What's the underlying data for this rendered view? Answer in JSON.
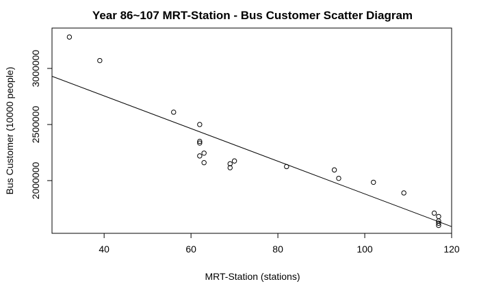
{
  "chart_data": {
    "type": "scatter",
    "title": "Year 86~107 MRT-Station  -  Bus Customer Scatter Diagram",
    "xlabel": "MRT-Station (stations)",
    "ylabel": "Bus Customer (10000 people)",
    "xlim": [
      28,
      120
    ],
    "ylim": [
      1530000,
      3360000
    ],
    "xticks": [
      40,
      60,
      80,
      100,
      120
    ],
    "yticks": [
      2000000,
      2500000,
      3000000
    ],
    "xtick_labels": [
      "40",
      "60",
      "80",
      "100",
      "120"
    ],
    "ytick_labels": [
      "2000000",
      "2500000",
      "3000000"
    ],
    "points": [
      {
        "x": 32,
        "y": 3280000
      },
      {
        "x": 39,
        "y": 3070000
      },
      {
        "x": 56,
        "y": 2610000
      },
      {
        "x": 62,
        "y": 2500000
      },
      {
        "x": 62,
        "y": 2350000
      },
      {
        "x": 62,
        "y": 2335000
      },
      {
        "x": 62,
        "y": 2220000
      },
      {
        "x": 63,
        "y": 2245000
      },
      {
        "x": 63,
        "y": 2160000
      },
      {
        "x": 69,
        "y": 2150000
      },
      {
        "x": 69,
        "y": 2115000
      },
      {
        "x": 70,
        "y": 2175000
      },
      {
        "x": 82,
        "y": 2125000
      },
      {
        "x": 93,
        "y": 2095000
      },
      {
        "x": 94,
        "y": 2020000
      },
      {
        "x": 102,
        "y": 1985000
      },
      {
        "x": 109,
        "y": 1890000
      },
      {
        "x": 116,
        "y": 1710000
      },
      {
        "x": 117,
        "y": 1680000
      },
      {
        "x": 117,
        "y": 1640000
      },
      {
        "x": 117,
        "y": 1620000
      },
      {
        "x": 117,
        "y": 1600000
      }
    ],
    "regression_line": {
      "x": [
        28,
        120
      ],
      "y": [
        2930000,
        1590000
      ]
    },
    "grid": false,
    "legend": "none"
  }
}
